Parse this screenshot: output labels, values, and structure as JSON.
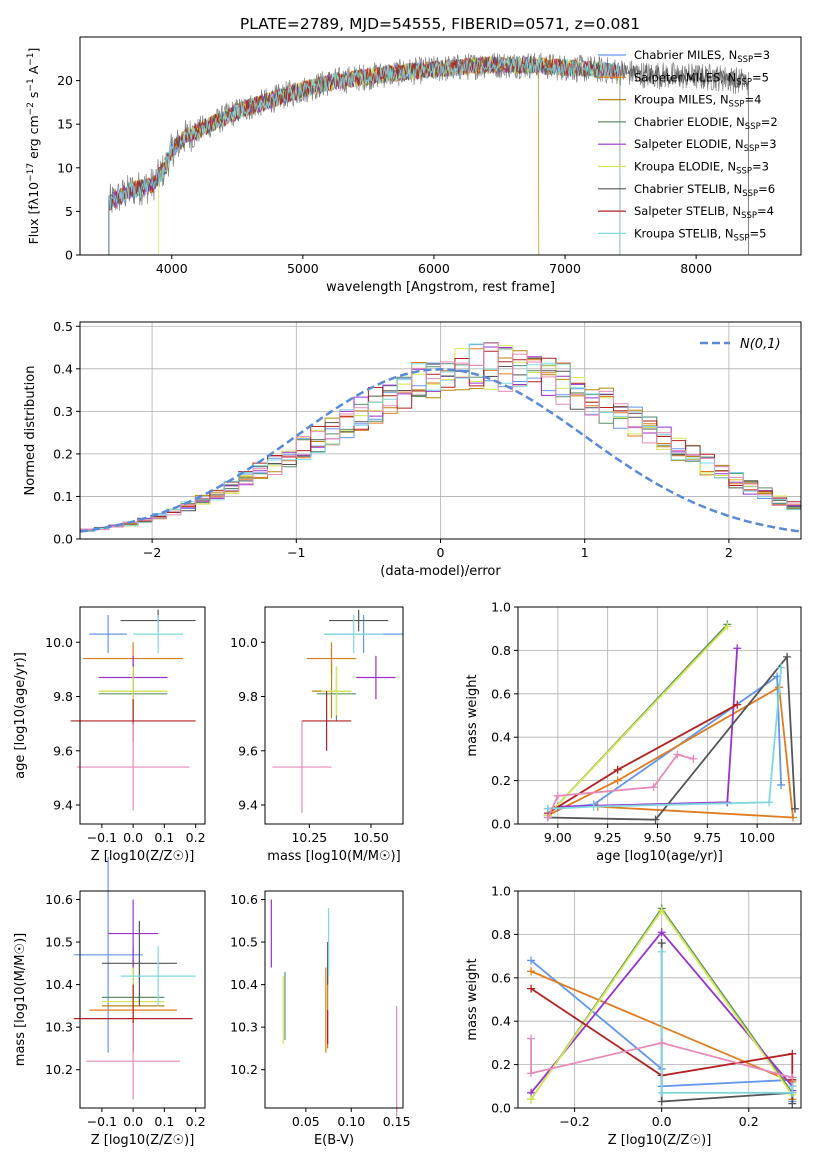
{
  "title": "PLATE=2789, MJD=54555, FIBERID=0571, z=0.081",
  "models": [
    {
      "label": "Chabrier MILES, N$_{SSP}$=3",
      "prefix": "Chabrier MILES, N",
      "sub": "SSP",
      "suffix": "=3",
      "color": "#6495ed"
    },
    {
      "label": "Salpeter MILES, N$_{SSP}$=5",
      "prefix": "Salpeter MILES, N",
      "sub": "SSP",
      "suffix": "=5",
      "color": "#e07b20"
    },
    {
      "label": "Kroupa MILES, N$_{SSP}$=4",
      "prefix": "Kroupa MILES, N",
      "sub": "SSP",
      "suffix": "=4",
      "color": "#b8860b"
    },
    {
      "label": "Chabrier ELODIE, N$_{SSP}$=2",
      "prefix": "Chabrier ELODIE, N",
      "sub": "SSP",
      "suffix": "=2",
      "color": "#5f8f6a"
    },
    {
      "label": "Salpeter ELODIE, N$_{SSP}$=3",
      "prefix": "Salpeter ELODIE, N",
      "sub": "SSP",
      "suffix": "=3",
      "color": "#9932cc"
    },
    {
      "label": "Kroupa ELODIE, N$_{SSP}$=3",
      "prefix": "Kroupa ELODIE, N",
      "sub": "SSP",
      "suffix": "=3",
      "color": "#d4e857"
    },
    {
      "label": "Chabrier STELIB, N$_{SSP}$=6",
      "prefix": "Chabrier STELIB, N",
      "sub": "SSP",
      "suffix": "=6",
      "color": "#555555"
    },
    {
      "label": "Salpeter STELIB, N$_{SSP}$=4",
      "prefix": "Salpeter STELIB, N",
      "sub": "SSP",
      "suffix": "=4",
      "color": "#b22222"
    },
    {
      "label": "Kroupa STELIB, N$_{SSP}$=5",
      "prefix": "Kroupa STELIB, N",
      "sub": "SSP",
      "suffix": "=5",
      "color": "#7fd8e0"
    }
  ],
  "chart_data": [
    {
      "id": "spectrum",
      "type": "line",
      "xlabel": "wavelength [Angstrom, rest frame]",
      "ylabel_text": "Flux [f",
      "ylabel_rest": "10",
      "ylabel_full": "Flux [fλ10^-17 erg cm^-2 s^-1 A^-1]",
      "xlim": [
        3300,
        8800
      ],
      "ylim": [
        0,
        25
      ],
      "xticks": [
        4000,
        5000,
        6000,
        7000,
        8000
      ],
      "yticks": [
        0,
        5,
        10,
        15,
        20
      ],
      "grid": false,
      "legend": "right",
      "data_color": "#808080",
      "continuum": {
        "x": [
          3520,
          3700,
          3850,
          3950,
          4000,
          4100,
          4300,
          4500,
          4700,
          4900,
          5200,
          5500,
          5800,
          6100,
          6400,
          6700,
          7000,
          7300,
          7600,
          7900,
          8200,
          8400
        ],
        "y": [
          6.0,
          7.5,
          8.0,
          10.0,
          12.0,
          13.5,
          15.0,
          16.5,
          17.5,
          18.5,
          19.8,
          20.5,
          21.0,
          21.4,
          21.8,
          21.8,
          21.5,
          21.2,
          20.7,
          20.5,
          20.3,
          19.8
        ]
      },
      "model_extents": [
        {
          "model": 0,
          "x_start": 3520,
          "x_end": 7420
        },
        {
          "model": 1,
          "x_start": 3520,
          "x_end": 7420
        },
        {
          "model": 2,
          "x_start": 3520,
          "x_end": 6800
        },
        {
          "model": 3,
          "x_start": 3520,
          "x_end": 7420
        },
        {
          "model": 4,
          "x_start": 3520,
          "x_end": 7420
        },
        {
          "model": 5,
          "x_start": 3900,
          "x_end": 7420
        },
        {
          "model": 6,
          "x_start": 3520,
          "x_end": 8400
        },
        {
          "model": 7,
          "x_start": 3520,
          "x_end": 7420
        },
        {
          "model": 8,
          "x_start": 3520,
          "x_end": 7420
        }
      ]
    },
    {
      "id": "residual-histogram",
      "type": "area",
      "xlabel": "(data-model)/error",
      "ylabel": "Normed distribution",
      "xlim": [
        -2.5,
        2.5
      ],
      "ylim": [
        0,
        0.51
      ],
      "xticks": [
        -2,
        -1,
        0,
        1,
        2
      ],
      "yticks": [
        0.0,
        0.1,
        0.2,
        0.3,
        0.4,
        0.5
      ],
      "grid": true,
      "legend": "top-right",
      "gaussian_label": "N(0,1)",
      "gaussian_color": "#5a8ad6",
      "bin_width": 0.1,
      "bin_start": -2.5,
      "reference": [
        0.021,
        0.024,
        0.03,
        0.035,
        0.043,
        0.053,
        0.064,
        0.077,
        0.091,
        0.106,
        0.122,
        0.139,
        0.157,
        0.175,
        0.194,
        0.214,
        0.234,
        0.255,
        0.275,
        0.295,
        0.315,
        0.333,
        0.35,
        0.365,
        0.378,
        0.39,
        0.398,
        0.403,
        0.405,
        0.403,
        0.398,
        0.39,
        0.378,
        0.365,
        0.35,
        0.333,
        0.315,
        0.295,
        0.275,
        0.255,
        0.234,
        0.214,
        0.194,
        0.175,
        0.157,
        0.139,
        0.122,
        0.106,
        0.091,
        0.077
      ]
    },
    {
      "id": "z-vs-age",
      "type": "scatter",
      "xlabel": "Z [log10(Z/Z☉)]",
      "ylabel": "age  [log10(age/yr)]",
      "xlim": [
        -0.17,
        0.23
      ],
      "ylim": [
        9.33,
        10.13
      ],
      "xticks": [
        -0.1,
        0.0,
        0.1,
        0.2
      ],
      "xticklabels": [
        "−0.1",
        "0.0",
        "0.1",
        "0.2"
      ],
      "yticks": [
        9.4,
        9.6,
        9.8,
        10.0
      ],
      "yticklabels": [
        "9.4",
        "9.6",
        "9.8",
        "10.0"
      ],
      "points": [
        {
          "model": 0,
          "x": -0.08,
          "y": 10.03,
          "xerr": 0.06,
          "yerr": 0.07,
          "x2": 0.1
        },
        {
          "model": 1,
          "x": 0.0,
          "y": 9.94,
          "xerr": 0.16,
          "yerr": 0.06
        },
        {
          "model": 2,
          "x": 0.0,
          "y": 9.82,
          "xerr": 0.11,
          "yerr": 0.1
        },
        {
          "model": 3,
          "x": 0.0,
          "y": 9.81,
          "xerr": 0.11,
          "yerr": 0.1
        },
        {
          "model": 4,
          "x": 0.0,
          "y": 9.87,
          "xerr": 0.11,
          "yerr": 0.08
        },
        {
          "model": 5,
          "x": 0.0,
          "y": 9.82,
          "xerr": 0.11,
          "yerr": 0.09
        },
        {
          "model": 6,
          "x": 0.08,
          "y": 10.08,
          "xerr": 0.12,
          "yerr": 0.04
        },
        {
          "model": 7,
          "x": 0.0,
          "y": 9.71,
          "xerr": 0.2,
          "yerr": 0.08
        },
        {
          "model": 8,
          "x": 0.08,
          "y": 10.03,
          "xerr": 0.08,
          "yerr": 0.07
        },
        {
          "model": 9,
          "x": 0.0,
          "y": 9.54,
          "xerr": 0.18,
          "yerr": 0.16
        }
      ]
    },
    {
      "id": "mass-vs-age",
      "type": "scatter",
      "xlabel": "mass [log10(M/M☉)]",
      "ylabel": "",
      "xlim": [
        10.07,
        10.63
      ],
      "ylim": [
        9.33,
        10.13
      ],
      "xticks": [
        10.25,
        10.5
      ],
      "xticklabels": [
        "10.25",
        "10.50"
      ],
      "yticks": [
        9.4,
        9.6,
        9.8,
        10.0
      ],
      "yticklabels": [
        "9.4",
        "9.6",
        "9.8",
        "10.0"
      ],
      "points": [
        {
          "model": 0,
          "x": 10.47,
          "y": 10.03,
          "xerr": 0.16,
          "yerr": 0.07
        },
        {
          "model": 1,
          "x": 10.34,
          "y": 9.94,
          "xerr": 0.1,
          "yerr": 0.06
        },
        {
          "model": 2,
          "x": 10.34,
          "y": 9.82,
          "xerr": 0.08,
          "yerr": 0.1
        },
        {
          "model": 3,
          "x": 10.36,
          "y": 9.81,
          "xerr": 0.08,
          "yerr": 0.1
        },
        {
          "model": 4,
          "x": 10.52,
          "y": 9.87,
          "xerr": 0.08,
          "yerr": 0.08
        },
        {
          "model": 5,
          "x": 10.36,
          "y": 9.82,
          "xerr": 0.06,
          "yerr": 0.09
        },
        {
          "model": 6,
          "x": 10.45,
          "y": 10.08,
          "xerr": 0.12,
          "yerr": 0.04
        },
        {
          "model": 7,
          "x": 10.32,
          "y": 9.71,
          "xerr": 0.1,
          "yerr": 0.11
        },
        {
          "model": 8,
          "x": 10.43,
          "y": 10.03,
          "xerr": 0.12,
          "yerr": 0.07
        },
        {
          "model": 9,
          "x": 10.22,
          "y": 9.54,
          "xerr": 0.12,
          "yerr": 0.17
        }
      ]
    },
    {
      "id": "age-vs-weight",
      "type": "line",
      "xlabel": "age  [log10(age/yr)]",
      "ylabel": "mass weight",
      "xlim": [
        8.8,
        10.22
      ],
      "ylim": [
        0.0,
        1.0
      ],
      "xticks": [
        9.0,
        9.25,
        9.5,
        9.75,
        10.0
      ],
      "xticklabels": [
        "9.00",
        "9.25",
        "9.50",
        "9.75",
        "10.00"
      ],
      "yticks": [
        0.0,
        0.2,
        0.4,
        0.6,
        0.8,
        1.0
      ],
      "yticklabels": [
        "0.0",
        "0.2",
        "0.4",
        "0.6",
        "0.8",
        "1.0"
      ],
      "grid": true,
      "series": [
        {
          "model": 0,
          "x": [
            8.95,
            9.18,
            10.1,
            10.12
          ],
          "y": [
            0.07,
            0.09,
            0.68,
            0.18
          ]
        },
        {
          "model": 1,
          "x": [
            8.95,
            9.3,
            10.11,
            10.18,
            9.2
          ],
          "y": [
            0.04,
            0.2,
            0.63,
            0.03,
            0.08
          ]
        },
        {
          "model": 3,
          "x": [
            8.95,
            9.85
          ],
          "y": [
            0.04,
            0.92
          ]
        },
        {
          "model": 4,
          "x": [
            9.0,
            9.85,
            9.9
          ],
          "y": [
            0.08,
            0.1,
            0.81
          ]
        },
        {
          "model": 5,
          "x": [
            8.95,
            9.85
          ],
          "y": [
            0.04,
            0.91
          ]
        },
        {
          "model": 6,
          "x": [
            8.95,
            9.49,
            10.15,
            10.19
          ],
          "y": [
            0.03,
            0.02,
            0.77,
            0.07
          ]
        },
        {
          "model": 7,
          "x": [
            8.95,
            9.3,
            9.9
          ],
          "y": [
            0.05,
            0.25,
            0.55
          ]
        },
        {
          "model": 8,
          "x": [
            8.95,
            9.18,
            10.06,
            10.12
          ],
          "y": [
            0.07,
            0.08,
            0.1,
            0.72
          ]
        },
        {
          "model": 9,
          "x": [
            8.95,
            9.0,
            9.48,
            9.6,
            9.68
          ],
          "y": [
            0.03,
            0.13,
            0.17,
            0.32,
            0.3
          ]
        }
      ]
    },
    {
      "id": "z-vs-mass",
      "type": "scatter",
      "xlabel": "Z [log10(Z/Z☉)]",
      "ylabel": "mass [log10(M/M☉)]",
      "xlim": [
        -0.17,
        0.23
      ],
      "ylim": [
        10.11,
        10.62
      ],
      "xticks": [
        -0.1,
        0.0,
        0.1,
        0.2
      ],
      "xticklabels": [
        "−0.1",
        "0.0",
        "0.1",
        "0.2"
      ],
      "yticks": [
        10.2,
        10.3,
        10.4,
        10.5,
        10.6
      ],
      "yticklabels": [
        "10.2",
        "10.3",
        "10.4",
        "10.5",
        "10.6"
      ],
      "points": [
        {
          "model": 0,
          "x": -0.08,
          "y": 10.47,
          "xerr": 0.11,
          "yerr": 0.23
        },
        {
          "model": 1,
          "x": 0.0,
          "y": 10.34,
          "xerr": 0.14,
          "yerr": 0.1
        },
        {
          "model": 2,
          "x": 0.0,
          "y": 10.35,
          "xerr": 0.1,
          "yerr": 0.1
        },
        {
          "model": 3,
          "x": 0.0,
          "y": 10.37,
          "xerr": 0.1,
          "yerr": 0.12
        },
        {
          "model": 4,
          "x": 0.0,
          "y": 10.52,
          "xerr": 0.08,
          "yerr": 0.08
        },
        {
          "model": 5,
          "x": 0.0,
          "y": 10.36,
          "xerr": 0.1,
          "yerr": 0.08
        },
        {
          "model": 6,
          "x": 0.02,
          "y": 10.45,
          "xerr": 0.12,
          "yerr": 0.1
        },
        {
          "model": 7,
          "x": 0.0,
          "y": 10.32,
          "xerr": 0.19,
          "yerr": 0.08
        },
        {
          "model": 8,
          "x": 0.08,
          "y": 10.42,
          "xerr": 0.12,
          "yerr": 0.07
        },
        {
          "model": 9,
          "x": 0.0,
          "y": 10.22,
          "xerr": 0.15,
          "yerr": 0.09
        }
      ]
    },
    {
      "id": "ebv-vs-mass",
      "type": "scatter",
      "xlabel": "E(B-V)",
      "ylabel": "",
      "xlim": [
        0.005,
        0.157
      ],
      "ylim": [
        10.11,
        10.62
      ],
      "xticks": [
        0.05,
        0.075,
        0.1,
        0.125,
        0.15
      ],
      "xticklabels": [
        "0.05",
        "0.10",
        "0.15"
      ],
      "xticks_shown": [
        0.05,
        0.1,
        0.15
      ],
      "xticks_minor_labels": [
        "0.05",
        "0.10",
        "0.15"
      ],
      "yticks": [
        10.2,
        10.3,
        10.4,
        10.5,
        10.6
      ],
      "yticklabels": [
        "10.2",
        "10.3",
        "10.4",
        "10.5",
        "10.6"
      ],
      "points": [
        {
          "model": 0,
          "x": 0.075,
          "y": 10.47,
          "xerr": 0,
          "yerr": 0.03
        },
        {
          "model": 1,
          "x": 0.072,
          "y": 10.34,
          "xerr": 0,
          "yerr": 0.1
        },
        {
          "model": 2,
          "x": 0.074,
          "y": 10.35,
          "xerr": 0,
          "yerr": 0.1
        },
        {
          "model": 3,
          "x": 0.027,
          "y": 10.35,
          "xerr": 0,
          "yerr": 0.08
        },
        {
          "model": 4,
          "x": 0.012,
          "y": 10.52,
          "xerr": 0,
          "yerr": 0.08
        },
        {
          "model": 5,
          "x": 0.025,
          "y": 10.34,
          "xerr": 0,
          "yerr": 0.08
        },
        {
          "model": 6,
          "x": 0.074,
          "y": 10.45,
          "xerr": 0,
          "yerr": 0.05
        },
        {
          "model": 7,
          "x": 0.074,
          "y": 10.3,
          "xerr": 0,
          "yerr": 0.04
        },
        {
          "model": 8,
          "x": 0.075,
          "y": 10.5,
          "xerr": 0,
          "yerr": 0.08
        },
        {
          "model": 9,
          "x": 0.15,
          "y": 10.22,
          "xerr": 0,
          "yerr": 0.13
        }
      ]
    },
    {
      "id": "z-vs-weight",
      "type": "line",
      "xlabel": "Z [log10(Z/Z☉)]",
      "ylabel": "mass weight",
      "xlim": [
        -0.33,
        0.32
      ],
      "ylim": [
        0.0,
        1.0
      ],
      "xticks": [
        -0.2,
        0.0,
        0.2
      ],
      "xticklabels": [
        "−0.2",
        "0.0",
        "0.2"
      ],
      "yticks": [
        0.0,
        0.2,
        0.4,
        0.6,
        0.8,
        1.0
      ],
      "yticklabels": [
        "0.0",
        "0.2",
        "0.4",
        "0.6",
        "0.8",
        "1.0"
      ],
      "grid": true,
      "series": [
        {
          "model": 0,
          "x": [
            -0.3,
            0.0,
            0.0,
            0.3,
            0.3
          ],
          "y": [
            0.68,
            0.18,
            0.1,
            0.13,
            0.03
          ]
        },
        {
          "model": 1,
          "x": [
            -0.3,
            0.3,
            0.3
          ],
          "y": [
            0.63,
            0.12,
            0.04
          ]
        },
        {
          "model": 3,
          "x": [
            -0.3,
            0.0,
            0.3
          ],
          "y": [
            0.04,
            0.92,
            0.07
          ]
        },
        {
          "model": 4,
          "x": [
            -0.3,
            0.0,
            0.3,
            0.3
          ],
          "y": [
            0.07,
            0.81,
            0.1,
            0.08
          ]
        },
        {
          "model": 5,
          "x": [
            -0.3,
            0.0,
            0.3
          ],
          "y": [
            0.04,
            0.91,
            0.06
          ]
        },
        {
          "model": 6,
          "x": [
            0.0,
            0.0,
            0.3,
            0.3
          ],
          "y": [
            0.76,
            0.03,
            0.07,
            0.02
          ]
        },
        {
          "model": 7,
          "x": [
            -0.3,
            0.0,
            0.3,
            0.3
          ],
          "y": [
            0.55,
            0.15,
            0.25,
            0.13
          ]
        },
        {
          "model": 8,
          "x": [
            0.0,
            0.0,
            0.3,
            0.3
          ],
          "y": [
            0.72,
            0.07,
            0.07,
            0.1
          ]
        },
        {
          "model": 9,
          "x": [
            -0.3,
            -0.3,
            0.0,
            0.3
          ],
          "y": [
            0.32,
            0.16,
            0.3,
            0.14
          ]
        }
      ]
    }
  ],
  "extra_colors": {
    "9": "#e68ab8"
  }
}
